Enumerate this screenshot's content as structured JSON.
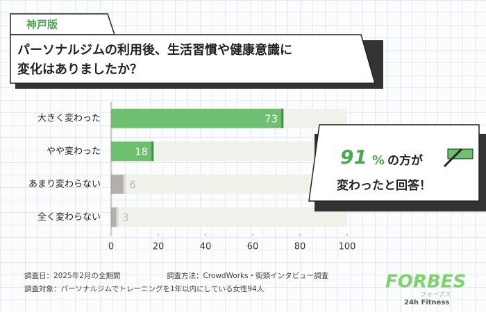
{
  "chart_data": {
    "type": "bar",
    "orientation": "horizontal",
    "tag": "神戸版",
    "title_lines": [
      "パーソナルジムの利用後、生活習慣や健康意識に",
      "変化はありましたか？"
    ],
    "categories": [
      "大きく変わった",
      "やや変わった",
      "あまり変わらない",
      "全く変わらない"
    ],
    "values": [
      73,
      18,
      6,
      3
    ],
    "colors": [
      "#6cc070",
      "#6cc070",
      "#b3afaf",
      "#b3afaf"
    ],
    "end_colors": [
      "#3f8f45",
      "#3f8f45",
      "#d8d5d5",
      "#d8d5d5"
    ],
    "track_color": "#eef2ea",
    "xlim": [
      0,
      100
    ],
    "xticks": [
      0,
      20,
      40,
      60,
      80,
      100
    ],
    "callout": {
      "number": "91",
      "unit": "%",
      "text1": "の方が",
      "text2": "変わったと回答！"
    },
    "notes": [
      "調査日：2025年2月の全期間",
      "調査方法：CrowdWorks・街頭インタビュー調査",
      "調査対象：パーソナルジムでトレーニングを1年以内にしている女性94人"
    ],
    "logo": {
      "main": "FORBES",
      "kana": "フォーブス",
      "sub": "24h Fitness"
    }
  }
}
